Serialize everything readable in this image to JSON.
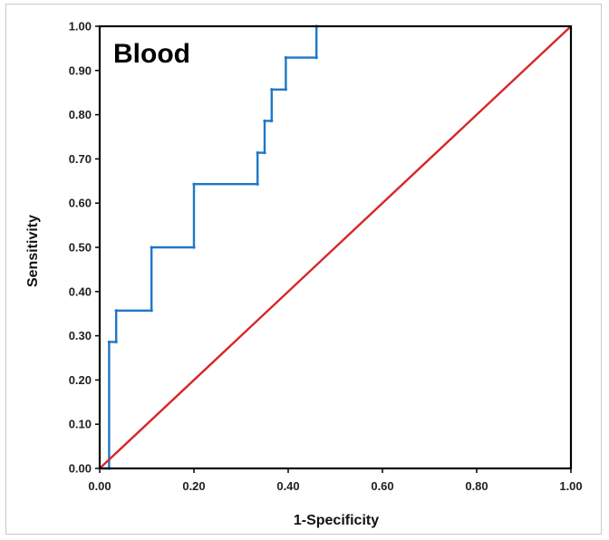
{
  "chart_data": {
    "type": "line",
    "title": "Blood",
    "xlabel": "1-Specificity",
    "ylabel": "Sensitivity",
    "xlim": [
      0,
      1
    ],
    "ylim": [
      0,
      1
    ],
    "x_ticks": [
      "0.00",
      "0.20",
      "0.40",
      "0.60",
      "0.80",
      "1.00"
    ],
    "y_ticks": [
      "0.00",
      "0.10",
      "0.20",
      "0.30",
      "0.40",
      "0.50",
      "0.60",
      "0.70",
      "0.80",
      "0.90",
      "1.00"
    ],
    "grid": false,
    "series": [
      {
        "color": "#1f77c8",
        "style": "step",
        "points": [
          [
            0.0,
            0.0
          ],
          [
            0.02,
            0.0
          ],
          [
            0.02,
            0.286
          ],
          [
            0.035,
            0.286
          ],
          [
            0.035,
            0.357
          ],
          [
            0.11,
            0.357
          ],
          [
            0.11,
            0.5
          ],
          [
            0.2,
            0.5
          ],
          [
            0.2,
            0.643
          ],
          [
            0.335,
            0.643
          ],
          [
            0.335,
            0.714
          ],
          [
            0.35,
            0.714
          ],
          [
            0.35,
            0.786
          ],
          [
            0.365,
            0.786
          ],
          [
            0.365,
            0.857
          ],
          [
            0.395,
            0.857
          ],
          [
            0.395,
            0.929
          ],
          [
            0.46,
            0.929
          ],
          [
            0.46,
            1.0
          ]
        ]
      },
      {
        "color": "#d62728",
        "style": "line",
        "points": [
          [
            0,
            0
          ],
          [
            1,
            1
          ]
        ]
      }
    ]
  }
}
